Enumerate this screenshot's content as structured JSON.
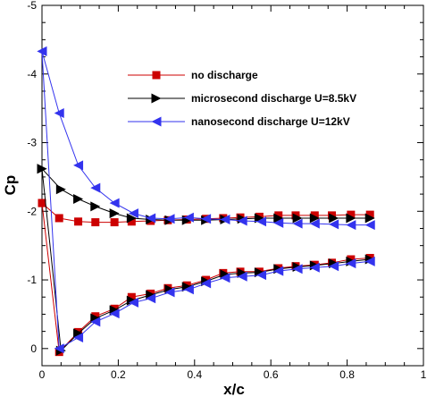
{
  "chart_data": {
    "type": "line",
    "xlabel": "x/c",
    "ylabel": "Cp",
    "xlim": [
      0,
      1
    ],
    "ylim": [
      -5,
      0.25
    ],
    "y_inverted": true,
    "grid": false,
    "legend_position": "top-center",
    "x_ticks": [
      0,
      0.2,
      0.4,
      0.6,
      0.8,
      1
    ],
    "x_tick_labels": [
      "0",
      "0.2",
      "0.4",
      "0.6",
      "0.8",
      "1"
    ],
    "y_ticks": [
      -5,
      -4,
      -3,
      -2,
      -1,
      0
    ],
    "y_tick_labels": [
      "-5",
      "-4",
      "-3",
      "-2",
      "-1",
      "0"
    ],
    "series": [
      {
        "name": "no discharge",
        "color": "#cc0000",
        "marker": "square",
        "upper": [
          [
            0,
            -2.12
          ],
          [
            0.045,
            -1.9
          ],
          [
            0.095,
            -1.85
          ],
          [
            0.14,
            -1.84
          ],
          [
            0.19,
            -1.84
          ],
          [
            0.235,
            -1.85
          ],
          [
            0.285,
            -1.86
          ],
          [
            0.33,
            -1.87
          ],
          [
            0.38,
            -1.88
          ],
          [
            0.43,
            -1.89
          ],
          [
            0.475,
            -1.9
          ],
          [
            0.52,
            -1.91
          ],
          [
            0.57,
            -1.92
          ],
          [
            0.62,
            -1.94
          ],
          [
            0.665,
            -1.94
          ],
          [
            0.715,
            -1.94
          ],
          [
            0.76,
            -1.94
          ],
          [
            0.81,
            -1.95
          ],
          [
            0.86,
            -1.95
          ]
        ],
        "lower": [
          [
            0,
            -2.12
          ],
          [
            0.045,
            0.05
          ],
          [
            0.095,
            -0.24
          ],
          [
            0.14,
            -0.47
          ],
          [
            0.19,
            -0.58
          ],
          [
            0.235,
            -0.75
          ],
          [
            0.285,
            -0.8
          ],
          [
            0.33,
            -0.88
          ],
          [
            0.38,
            -0.92
          ],
          [
            0.43,
            -1.0
          ],
          [
            0.475,
            -1.1
          ],
          [
            0.52,
            -1.12
          ],
          [
            0.57,
            -1.12
          ],
          [
            0.62,
            -1.17
          ],
          [
            0.665,
            -1.2
          ],
          [
            0.715,
            -1.22
          ],
          [
            0.76,
            -1.25
          ],
          [
            0.81,
            -1.3
          ],
          [
            0.86,
            -1.32
          ]
        ]
      },
      {
        "name": "microsecond discharge U=8.5kV",
        "color": "#000000",
        "marker": "triangle-right",
        "upper": [
          [
            0,
            -2.62
          ],
          [
            0.05,
            -2.32
          ],
          [
            0.095,
            -2.18
          ],
          [
            0.14,
            -2.07
          ],
          [
            0.19,
            -1.97
          ],
          [
            0.235,
            -1.9
          ],
          [
            0.285,
            -1.88
          ],
          [
            0.335,
            -1.87
          ],
          [
            0.38,
            -1.87
          ],
          [
            0.43,
            -1.87
          ],
          [
            0.48,
            -1.88
          ],
          [
            0.525,
            -1.89
          ],
          [
            0.57,
            -1.9
          ],
          [
            0.62,
            -1.9
          ],
          [
            0.67,
            -1.9
          ],
          [
            0.715,
            -1.9
          ],
          [
            0.765,
            -1.9
          ],
          [
            0.81,
            -1.9
          ],
          [
            0.86,
            -1.9
          ]
        ],
        "lower": [
          [
            0,
            -2.62
          ],
          [
            0.05,
            0.03
          ],
          [
            0.095,
            -0.22
          ],
          [
            0.14,
            -0.44
          ],
          [
            0.19,
            -0.56
          ],
          [
            0.235,
            -0.7
          ],
          [
            0.285,
            -0.78
          ],
          [
            0.335,
            -0.86
          ],
          [
            0.38,
            -0.9
          ],
          [
            0.43,
            -0.98
          ],
          [
            0.48,
            -1.08
          ],
          [
            0.525,
            -1.1
          ],
          [
            0.57,
            -1.11
          ],
          [
            0.62,
            -1.16
          ],
          [
            0.67,
            -1.19
          ],
          [
            0.715,
            -1.21
          ],
          [
            0.765,
            -1.24
          ],
          [
            0.81,
            -1.27
          ],
          [
            0.86,
            -1.3
          ]
        ]
      },
      {
        "name": "nanosecond discharge U=12kV",
        "color": "#3333ee",
        "marker": "triangle-left",
        "upper": [
          [
            0,
            -4.33
          ],
          [
            0.045,
            -3.43
          ],
          [
            0.095,
            -2.67
          ],
          [
            0.14,
            -2.34
          ],
          [
            0.19,
            -2.12
          ],
          [
            0.24,
            -1.97
          ],
          [
            0.285,
            -1.9
          ],
          [
            0.335,
            -1.89
          ],
          [
            0.385,
            -1.91
          ],
          [
            0.43,
            -1.89
          ],
          [
            0.48,
            -1.88
          ],
          [
            0.525,
            -1.86
          ],
          [
            0.575,
            -1.85
          ],
          [
            0.62,
            -1.83
          ],
          [
            0.67,
            -1.82
          ],
          [
            0.715,
            -1.82
          ],
          [
            0.765,
            -1.81
          ],
          [
            0.81,
            -1.8
          ],
          [
            0.86,
            -1.8
          ]
        ],
        "lower": [
          [
            0,
            -4.33
          ],
          [
            0.045,
            0.0
          ],
          [
            0.095,
            -0.16
          ],
          [
            0.14,
            -0.39
          ],
          [
            0.19,
            -0.51
          ],
          [
            0.24,
            -0.67
          ],
          [
            0.285,
            -0.73
          ],
          [
            0.335,
            -0.82
          ],
          [
            0.385,
            -0.86
          ],
          [
            0.43,
            -0.95
          ],
          [
            0.48,
            -1.03
          ],
          [
            0.525,
            -1.05
          ],
          [
            0.575,
            -1.07
          ],
          [
            0.62,
            -1.13
          ],
          [
            0.67,
            -1.16
          ],
          [
            0.715,
            -1.18
          ],
          [
            0.765,
            -1.2
          ],
          [
            0.81,
            -1.24
          ],
          [
            0.86,
            -1.27
          ]
        ]
      }
    ]
  }
}
